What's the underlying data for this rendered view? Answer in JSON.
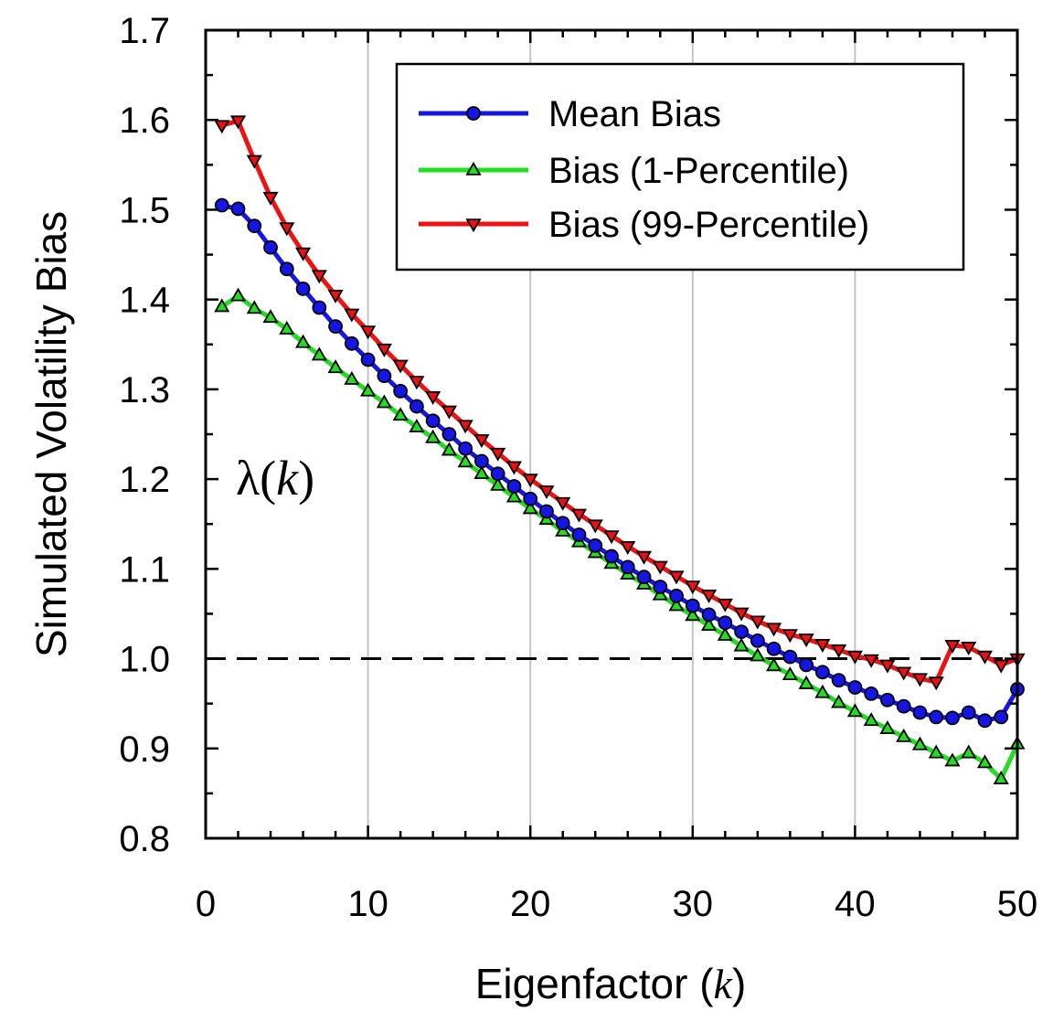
{
  "chart_data": {
    "type": "line",
    "xlabel": "Eigenfactor (k)",
    "xlabel_parts": {
      "prefix": "Eigenfactor (",
      "var": "k",
      "suffix": ")"
    },
    "ylabel": "Simulated Volatility Bias",
    "annotation": {
      "prefix": "λ(",
      "var": "k",
      "suffix": ")"
    },
    "xlim": [
      0,
      50
    ],
    "ylim": [
      0.8,
      1.7
    ],
    "xticks": [
      0,
      10,
      20,
      30,
      40,
      50
    ],
    "yticks": [
      0.8,
      0.9,
      1.0,
      1.1,
      1.2,
      1.3,
      1.4,
      1.5,
      1.6,
      1.7
    ],
    "xtick_labels": [
      "0",
      "10",
      "20",
      "30",
      "40",
      "50"
    ],
    "ytick_labels": [
      "0.8",
      "0.9",
      "1.0",
      "1.1",
      "1.2",
      "1.3",
      "1.4",
      "1.5",
      "1.6",
      "1.7"
    ],
    "vertical_gridlines": [
      10,
      20,
      30,
      40
    ],
    "reference_line": 1.0,
    "legend_position": "top-right",
    "x": [
      1,
      2,
      3,
      4,
      5,
      6,
      7,
      8,
      9,
      10,
      11,
      12,
      13,
      14,
      15,
      16,
      17,
      18,
      19,
      20,
      21,
      22,
      23,
      24,
      25,
      26,
      27,
      28,
      29,
      30,
      31,
      32,
      33,
      34,
      35,
      36,
      37,
      38,
      39,
      40,
      41,
      42,
      43,
      44,
      45,
      46,
      47,
      48,
      49,
      50
    ],
    "series": [
      {
        "name": "Mean Bias",
        "color": "#1515e6",
        "marker": "circle",
        "values": [
          1.505,
          1.501,
          1.482,
          1.458,
          1.434,
          1.412,
          1.391,
          1.37,
          1.351,
          1.333,
          1.315,
          1.298,
          1.281,
          1.265,
          1.25,
          1.234,
          1.22,
          1.206,
          1.192,
          1.178,
          1.164,
          1.151,
          1.138,
          1.126,
          1.114,
          1.102,
          1.091,
          1.08,
          1.07,
          1.059,
          1.049,
          1.04,
          1.03,
          1.02,
          1.011,
          1.002,
          0.993,
          0.985,
          0.976,
          0.968,
          0.961,
          0.954,
          0.947,
          0.94,
          0.935,
          0.934,
          0.94,
          0.931,
          0.935,
          0.966
        ]
      },
      {
        "name": "Bias (1-Percentile)",
        "color": "#22dd22",
        "marker": "triangle-up",
        "values": [
          1.392,
          1.404,
          1.39,
          1.38,
          1.367,
          1.352,
          1.338,
          1.324,
          1.311,
          1.298,
          1.285,
          1.271,
          1.258,
          1.246,
          1.232,
          1.219,
          1.206,
          1.193,
          1.18,
          1.167,
          1.155,
          1.142,
          1.13,
          1.118,
          1.106,
          1.094,
          1.083,
          1.071,
          1.059,
          1.048,
          1.037,
          1.026,
          1.014,
          1.003,
          0.992,
          0.982,
          0.972,
          0.962,
          0.951,
          0.941,
          0.931,
          0.922,
          0.913,
          0.904,
          0.895,
          0.886,
          0.895,
          0.884,
          0.866,
          0.905
        ]
      },
      {
        "name": "Bias (99-Percentile)",
        "color": "#ee1111",
        "marker": "triangle-down",
        "values": [
          1.594,
          1.599,
          1.555,
          1.514,
          1.48,
          1.452,
          1.427,
          1.405,
          1.384,
          1.365,
          1.345,
          1.327,
          1.309,
          1.292,
          1.276,
          1.26,
          1.244,
          1.229,
          1.214,
          1.2,
          1.187,
          1.174,
          1.161,
          1.149,
          1.137,
          1.125,
          1.114,
          1.103,
          1.092,
          1.081,
          1.071,
          1.061,
          1.051,
          1.042,
          1.034,
          1.027,
          1.022,
          1.016,
          1.01,
          1.003,
          0.999,
          0.993,
          0.985,
          0.978,
          0.974,
          1.015,
          1.013,
          1.003,
          0.993,
          1.0
        ]
      }
    ]
  }
}
